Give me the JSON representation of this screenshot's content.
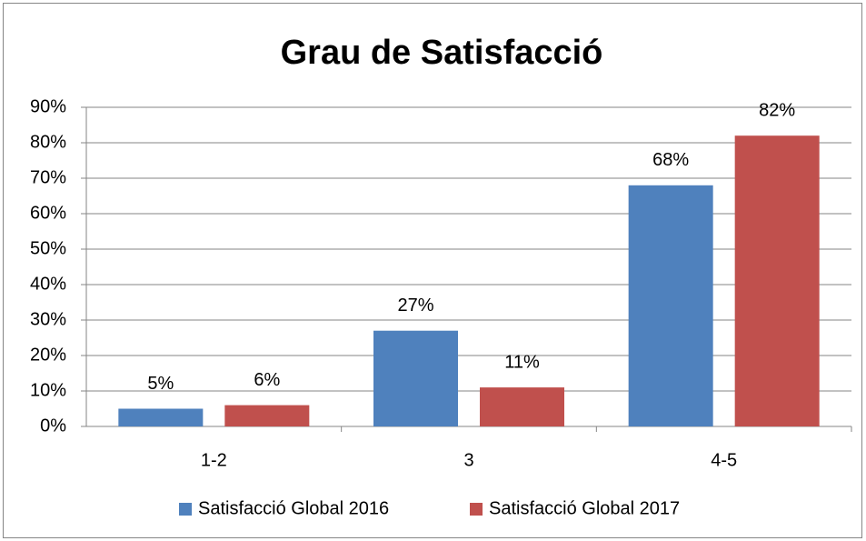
{
  "chart_data": {
    "type": "bar",
    "title": "Grau de Satisfacció",
    "categories": [
      "1-2",
      "3",
      "4-5"
    ],
    "series": [
      {
        "name": "Satisfacció Global 2016",
        "color": "#4f81bd",
        "values": [
          5,
          27,
          68
        ],
        "value_labels": [
          "5%",
          "27%",
          "68%"
        ]
      },
      {
        "name": "Satisfacció Global 2017",
        "color": "#c0504d",
        "values": [
          6,
          11,
          82
        ],
        "value_labels": [
          "6%",
          "11%",
          "82%"
        ]
      }
    ],
    "ylim": [
      0,
      90
    ],
    "yticks": [
      {
        "value": 0,
        "label": "0%"
      },
      {
        "value": 10,
        "label": "10%"
      },
      {
        "value": 20,
        "label": "20%"
      },
      {
        "value": 30,
        "label": "30%"
      },
      {
        "value": 40,
        "label": "40%"
      },
      {
        "value": 50,
        "label": "50%"
      },
      {
        "value": 60,
        "label": "60%"
      },
      {
        "value": 70,
        "label": "70%"
      },
      {
        "value": 80,
        "label": "80%"
      },
      {
        "value": 90,
        "label": "90%"
      }
    ],
    "grid": true,
    "legend": "bottom"
  }
}
